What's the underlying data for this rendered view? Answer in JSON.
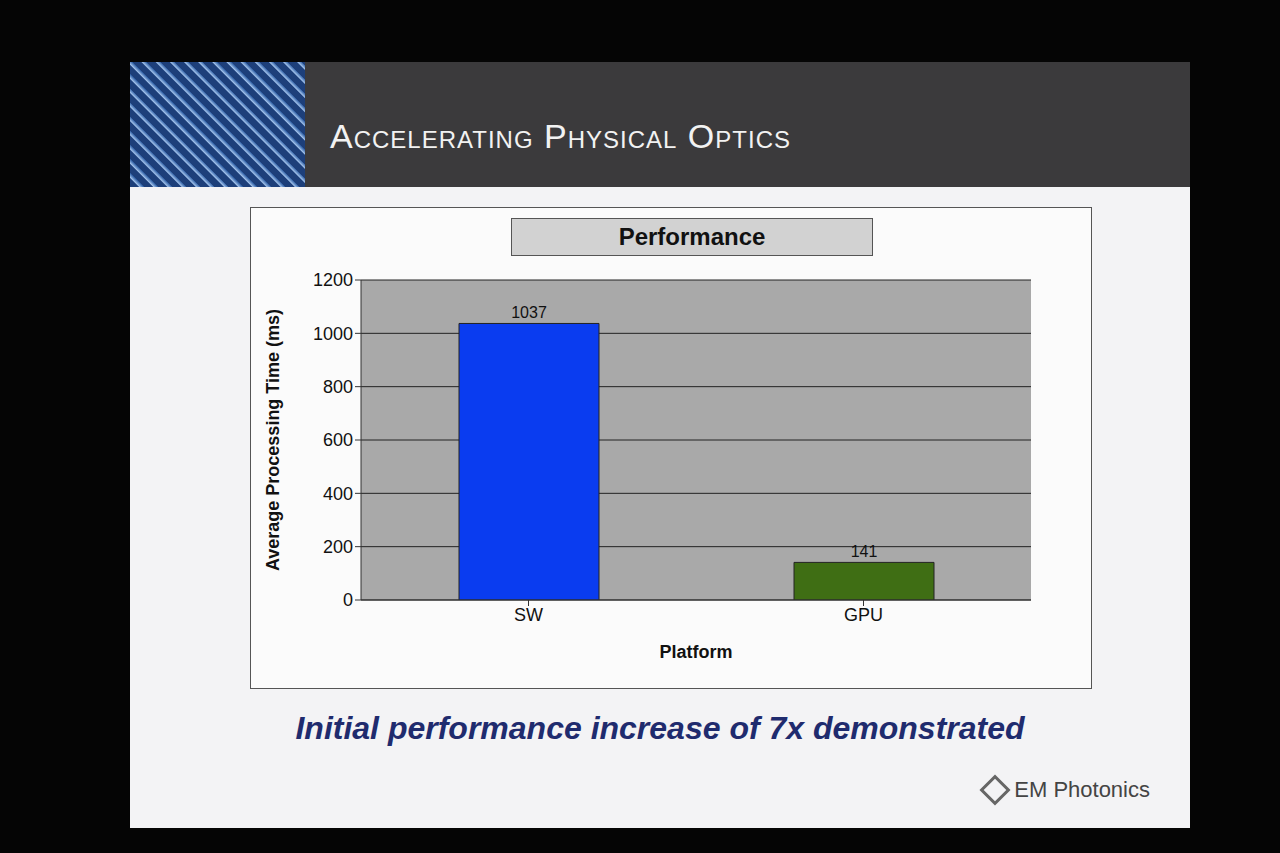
{
  "header": {
    "title": "Accelerating Physical Optics"
  },
  "chart_data": {
    "type": "bar",
    "title": "Performance",
    "x_label": "Platform",
    "y_label": "Average Processing Time (ms)",
    "categories": [
      "SW",
      "GPU"
    ],
    "values": [
      1037,
      141
    ],
    "colors": [
      "#0a3cf0",
      "#3f6e14"
    ],
    "ylim": [
      0,
      1200
    ],
    "yticks": [
      0,
      200,
      400,
      600,
      800,
      1000,
      1200
    ],
    "grid": true,
    "data_labels": true
  },
  "footer": {
    "caption": "Initial performance increase of 7x demonstrated",
    "logo": "EM Photonics"
  }
}
